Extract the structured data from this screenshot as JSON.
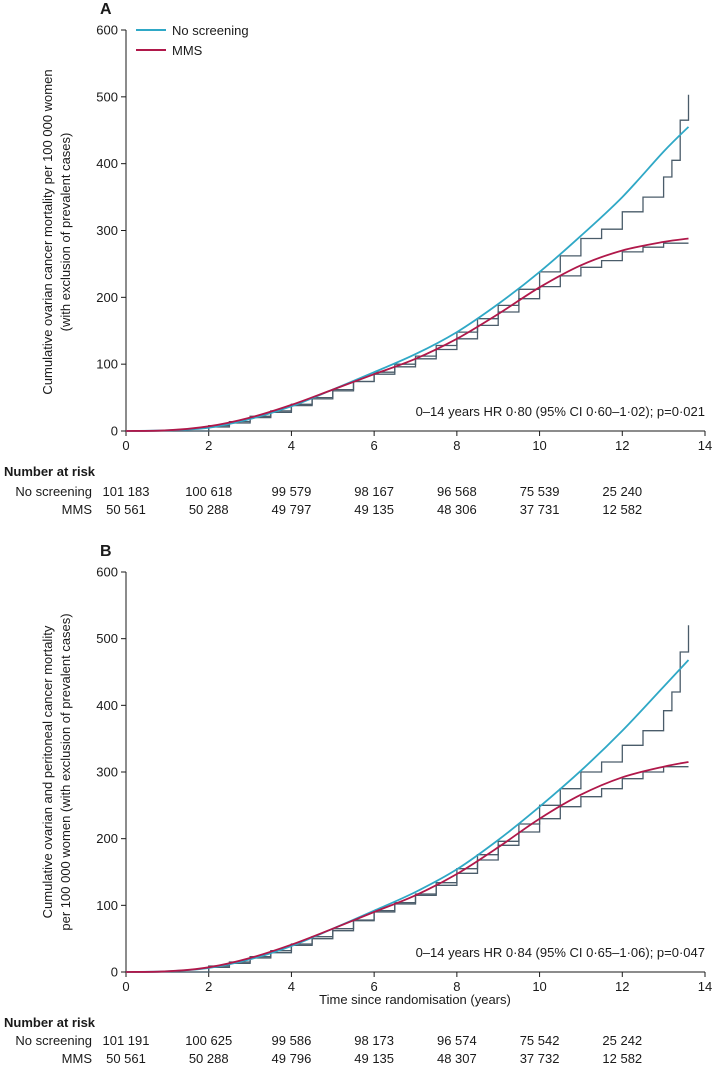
{
  "colors": {
    "no_screening": "#2fa8c6",
    "mms": "#b0184a",
    "step": "#4a5c6a"
  },
  "legend": {
    "no_screening_label": "No screening",
    "mms_label": "MMS"
  },
  "risk": {
    "header": "Number at risk",
    "no_screening_label": "No screening",
    "mms_label": "MMS"
  },
  "chart_data": [
    {
      "panel": "A",
      "type": "line",
      "ylabel_lines": [
        "Cumulative ovarian cancer mortality per 100 000 women",
        "(with exclusion of prevalent cases)"
      ],
      "xlabel": "",
      "xlim": [
        0,
        14
      ],
      "ylim": [
        0,
        600
      ],
      "xticks": [
        0,
        2,
        4,
        6,
        8,
        10,
        12,
        14
      ],
      "yticks": [
        0,
        100,
        200,
        300,
        400,
        500,
        600
      ],
      "annotation": "0–14 years HR 0·80 (95% CI 0·60–1·02); p=0·021",
      "series": [
        {
          "name": "No screening",
          "fitted": {
            "x": [
              0,
              1,
              2,
              3,
              4,
              5,
              6,
              7,
              8,
              9,
              10,
              11,
              12,
              13,
              13.6
            ],
            "y": [
              0,
              1,
              5,
              18,
              37,
              62,
              88,
              115,
              148,
              190,
              238,
              292,
              350,
              418,
              455
            ]
          },
          "kaplan_meier": {
            "x": [
              0,
              2,
              2.5,
              3,
              3.5,
              4,
              4.5,
              5,
              5.5,
              6,
              6.5,
              7,
              7.5,
              8,
              8.5,
              9,
              9.5,
              10,
              10.5,
              11,
              11.5,
              12,
              12.5,
              13,
              13.2,
              13.4,
              13.6
            ],
            "y": [
              0,
              6,
              12,
              20,
              28,
              38,
              48,
              60,
              74,
              88,
              100,
              112,
              128,
              148,
              168,
              188,
              212,
              238,
              262,
              288,
              302,
              328,
              350,
              380,
              405,
              465,
              503
            ]
          }
        },
        {
          "name": "MMS",
          "fitted": {
            "x": [
              0,
              1,
              2,
              3,
              4,
              5,
              6,
              7,
              8,
              9,
              10,
              11,
              12,
              13,
              13.6
            ],
            "y": [
              0,
              1,
              7,
              20,
              39,
              62,
              85,
              108,
              138,
              175,
              215,
              248,
              270,
              283,
              288
            ]
          },
          "kaplan_meier": {
            "x": [
              0,
              2,
              2.5,
              3,
              3.5,
              4,
              4.5,
              5,
              5.5,
              6,
              6.5,
              7,
              7.5,
              8,
              8.5,
              9,
              9.5,
              10,
              10.5,
              11,
              11.5,
              12,
              12.5,
              13,
              13.6
            ],
            "y": [
              0,
              8,
              14,
              22,
              30,
              40,
              50,
              62,
              74,
              85,
              96,
              108,
              122,
              138,
              158,
              178,
              198,
              216,
              232,
              245,
              255,
              268,
              275,
              281,
              281
            ]
          }
        }
      ],
      "risk_table": {
        "times": [
          0,
          2,
          4,
          6,
          8,
          10,
          12
        ],
        "no_screening": [
          "101 183",
          "100 618",
          "99 579",
          "98 167",
          "96 568",
          "75 539",
          "25 240"
        ],
        "mms": [
          "50 561",
          "50 288",
          "49 797",
          "49 135",
          "48 306",
          "37 731",
          "12 582"
        ]
      }
    },
    {
      "panel": "B",
      "type": "line",
      "ylabel_lines": [
        "Cumulative ovarian and peritoneal cancer mortality",
        "per 100 000 women (with exclusion of prevalent cases)"
      ],
      "xlabel": "Time since randomisation (years)",
      "xlim": [
        0,
        14
      ],
      "ylim": [
        0,
        600
      ],
      "xticks": [
        0,
        2,
        4,
        6,
        8,
        10,
        12,
        14
      ],
      "yticks": [
        0,
        100,
        200,
        300,
        400,
        500,
        600
      ],
      "annotation": "0–14 years HR 0·84 (95% CI 0·65–1·06); p=0·047",
      "series": [
        {
          "name": "No screening",
          "fitted": {
            "x": [
              0,
              1,
              2,
              3,
              4,
              5,
              6,
              7,
              8,
              9,
              10,
              11,
              12,
              13,
              13.6
            ],
            "y": [
              0,
              1,
              6,
              19,
              39,
              65,
              92,
              120,
              154,
              198,
              248,
              302,
              362,
              428,
              468
            ]
          },
          "kaplan_meier": {
            "x": [
              0,
              2,
              2.5,
              3,
              3.5,
              4,
              4.5,
              5,
              5.5,
              6,
              6.5,
              7,
              7.5,
              8,
              8.5,
              9,
              9.5,
              10,
              10.5,
              11,
              11.5,
              12,
              12.5,
              13,
              13.2,
              13.4,
              13.6
            ],
            "y": [
              0,
              7,
              13,
              21,
              29,
              40,
              50,
              62,
              77,
              92,
              104,
              117,
              134,
              155,
              176,
              196,
              222,
              250,
              275,
              300,
              315,
              340,
              362,
              392,
              420,
              480,
              520
            ]
          }
        },
        {
          "name": "MMS",
          "fitted": {
            "x": [
              0,
              1,
              2,
              3,
              4,
              5,
              6,
              7,
              8,
              9,
              10,
              11,
              12,
              13,
              13.6
            ],
            "y": [
              0,
              1,
              7,
              21,
              41,
              65,
              90,
              115,
              147,
              187,
              230,
              266,
              292,
              308,
              315
            ]
          },
          "kaplan_meier": {
            "x": [
              0,
              2,
              2.5,
              3,
              3.5,
              4,
              4.5,
              5,
              5.5,
              6,
              6.5,
              7,
              7.5,
              8,
              8.5,
              9,
              9.5,
              10,
              10.5,
              11,
              11.5,
              12,
              12.5,
              13,
              13.6
            ],
            "y": [
              0,
              9,
              15,
              23,
              32,
              42,
              53,
              65,
              78,
              90,
              102,
              115,
              130,
              148,
              168,
              190,
              210,
              230,
              248,
              263,
              275,
              290,
              300,
              308,
              308
            ]
          }
        }
      ],
      "risk_table": {
        "times": [
          0,
          2,
          4,
          6,
          8,
          10,
          12
        ],
        "no_screening": [
          "101 191",
          "100 625",
          "99 586",
          "98 173",
          "96 574",
          "75 542",
          "25 242"
        ],
        "mms": [
          "50 561",
          "50 288",
          "49 796",
          "49 135",
          "48 307",
          "37 732",
          "12 582"
        ]
      }
    }
  ]
}
